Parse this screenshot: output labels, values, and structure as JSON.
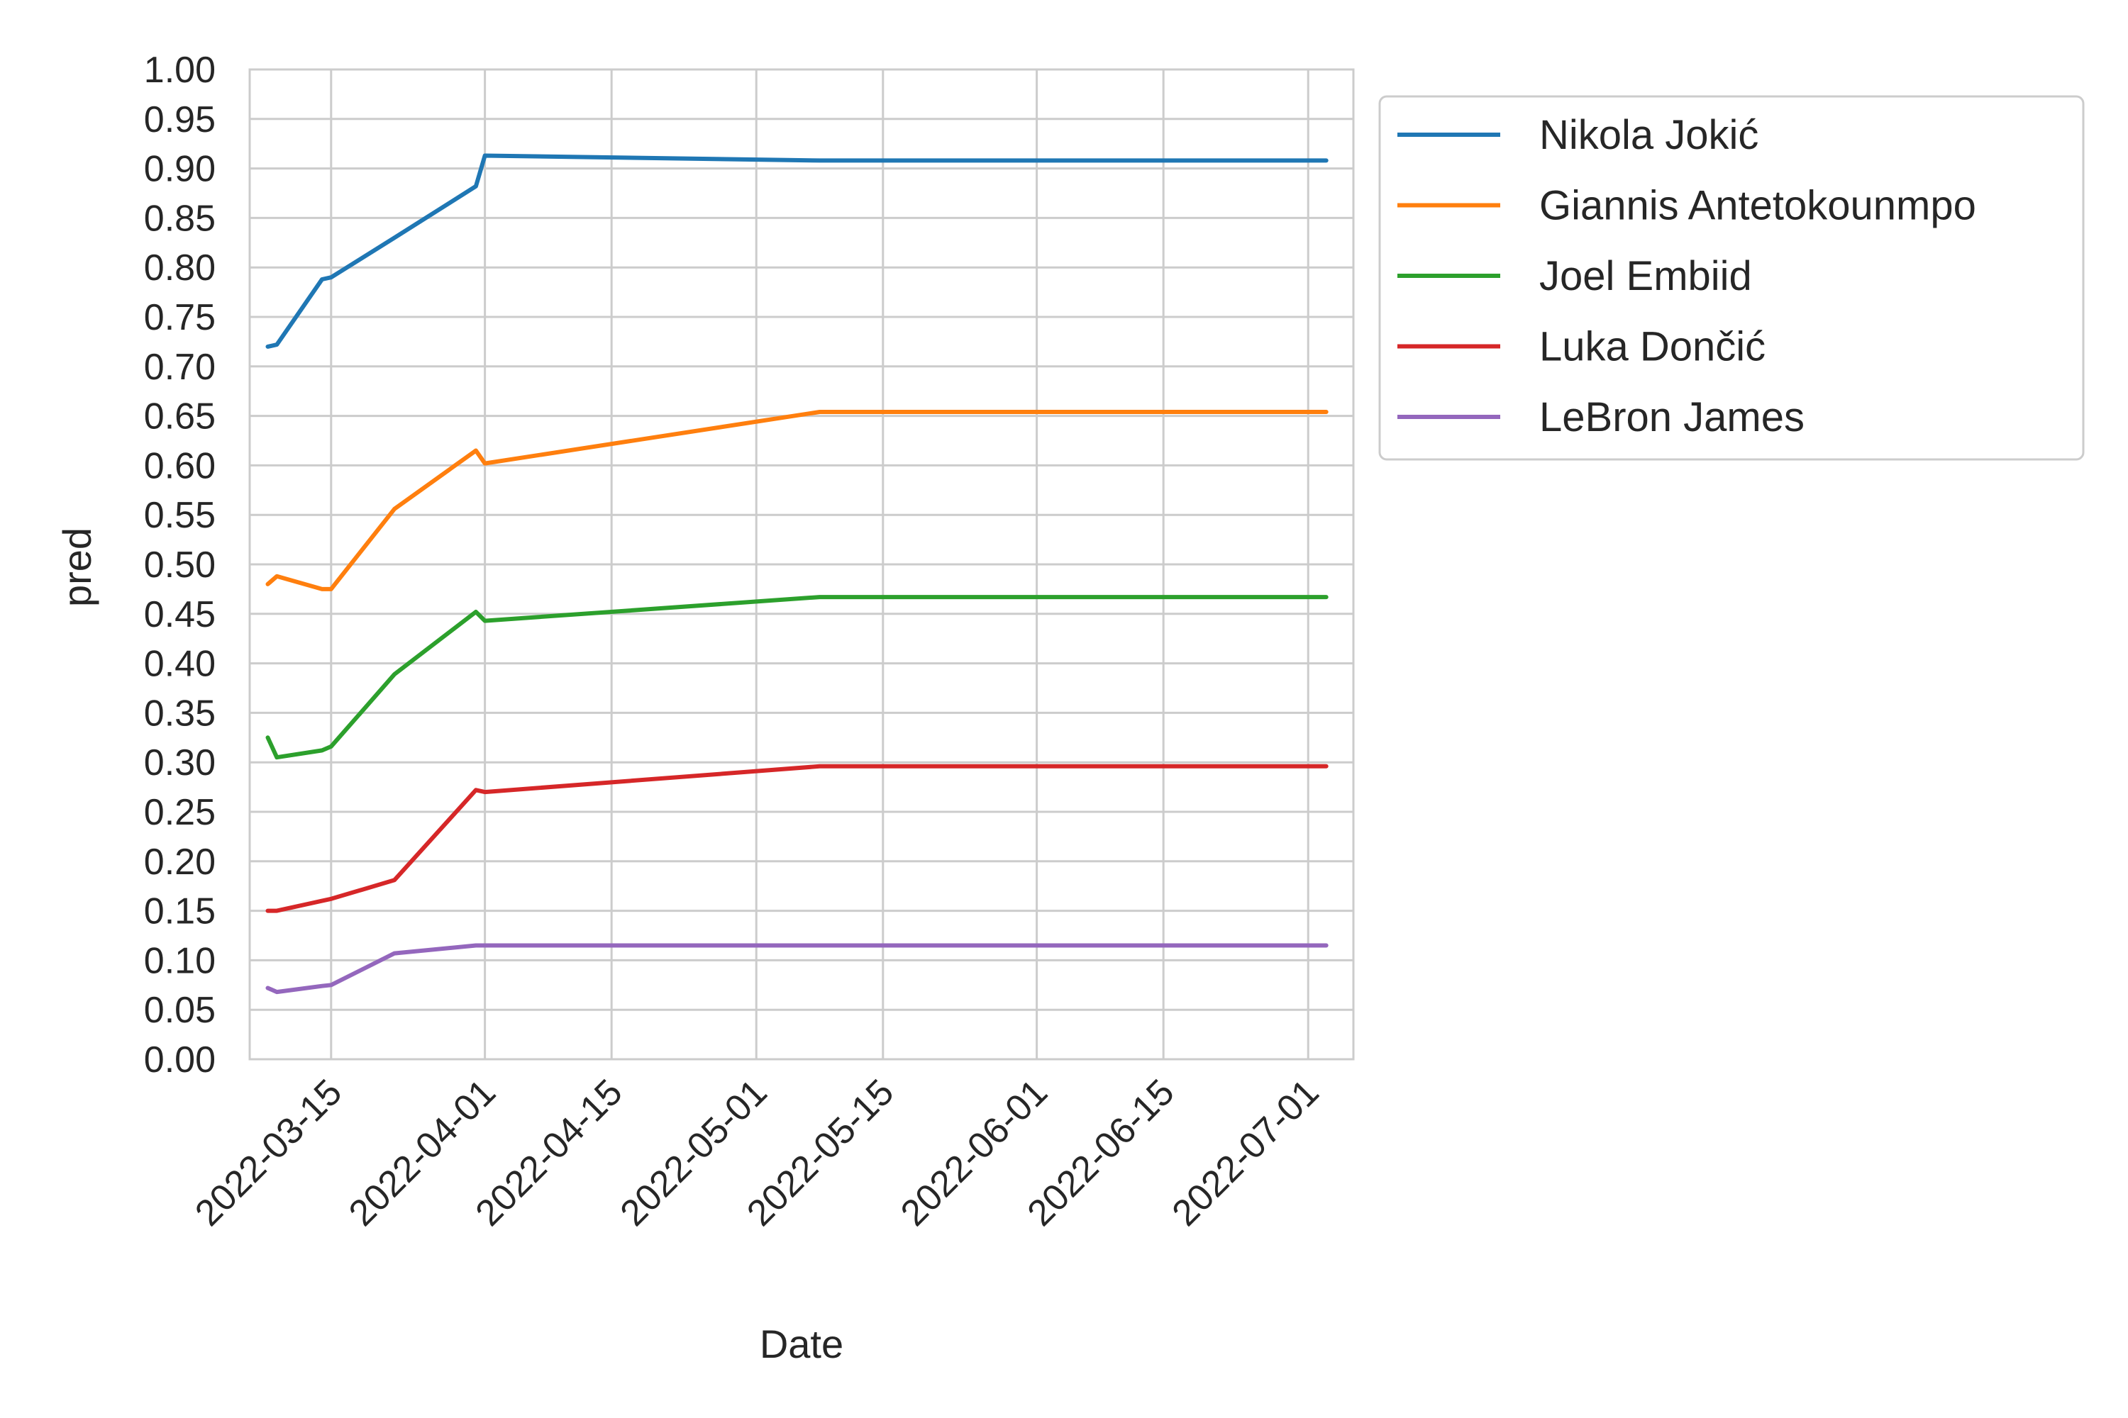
{
  "chart_data": {
    "type": "line",
    "xlabel": "Date",
    "ylabel": "pred",
    "ylim": [
      0,
      1
    ],
    "yticks": [
      "0.00",
      "0.05",
      "0.10",
      "0.15",
      "0.20",
      "0.25",
      "0.30",
      "0.35",
      "0.40",
      "0.45",
      "0.50",
      "0.55",
      "0.60",
      "0.65",
      "0.70",
      "0.75",
      "0.80",
      "0.85",
      "0.90",
      "0.95",
      "1.00"
    ],
    "xlim": [
      "2022-03-06",
      "2022-07-06"
    ],
    "xticks": [
      "2022-03-15",
      "2022-04-01",
      "2022-04-15",
      "2022-05-01",
      "2022-05-15",
      "2022-06-01",
      "2022-06-15",
      "2022-07-01"
    ],
    "grid": true,
    "legend_position": "outside-top-right",
    "x": [
      "2022-03-08",
      "2022-03-09",
      "2022-03-14",
      "2022-03-15",
      "2022-03-22",
      "2022-03-31",
      "2022-04-01",
      "2022-05-08",
      "2022-07-03"
    ],
    "series": [
      {
        "name": "Nikola Jokić",
        "color": "#1f77b4",
        "values": [
          0.72,
          0.722,
          0.788,
          0.79,
          0.83,
          0.882,
          0.913,
          0.908,
          0.908
        ]
      },
      {
        "name": "Giannis Antetokounmpo",
        "color": "#ff7f0e",
        "values": [
          0.48,
          0.488,
          0.475,
          0.475,
          0.556,
          0.615,
          0.602,
          0.654,
          0.654
        ]
      },
      {
        "name": "Joel Embiid",
        "color": "#2ca02c",
        "values": [
          0.325,
          0.305,
          0.312,
          0.316,
          0.389,
          0.452,
          0.443,
          0.467,
          0.467
        ]
      },
      {
        "name": "Luka Dončić",
        "color": "#d62728",
        "values": [
          0.15,
          0.15,
          0.16,
          0.162,
          0.181,
          0.272,
          0.27,
          0.296,
          0.296
        ]
      },
      {
        "name": "LeBron James",
        "color": "#9467bd",
        "values": [
          0.072,
          0.068,
          0.074,
          0.075,
          0.107,
          0.115,
          0.115,
          0.115,
          0.115
        ]
      }
    ]
  }
}
